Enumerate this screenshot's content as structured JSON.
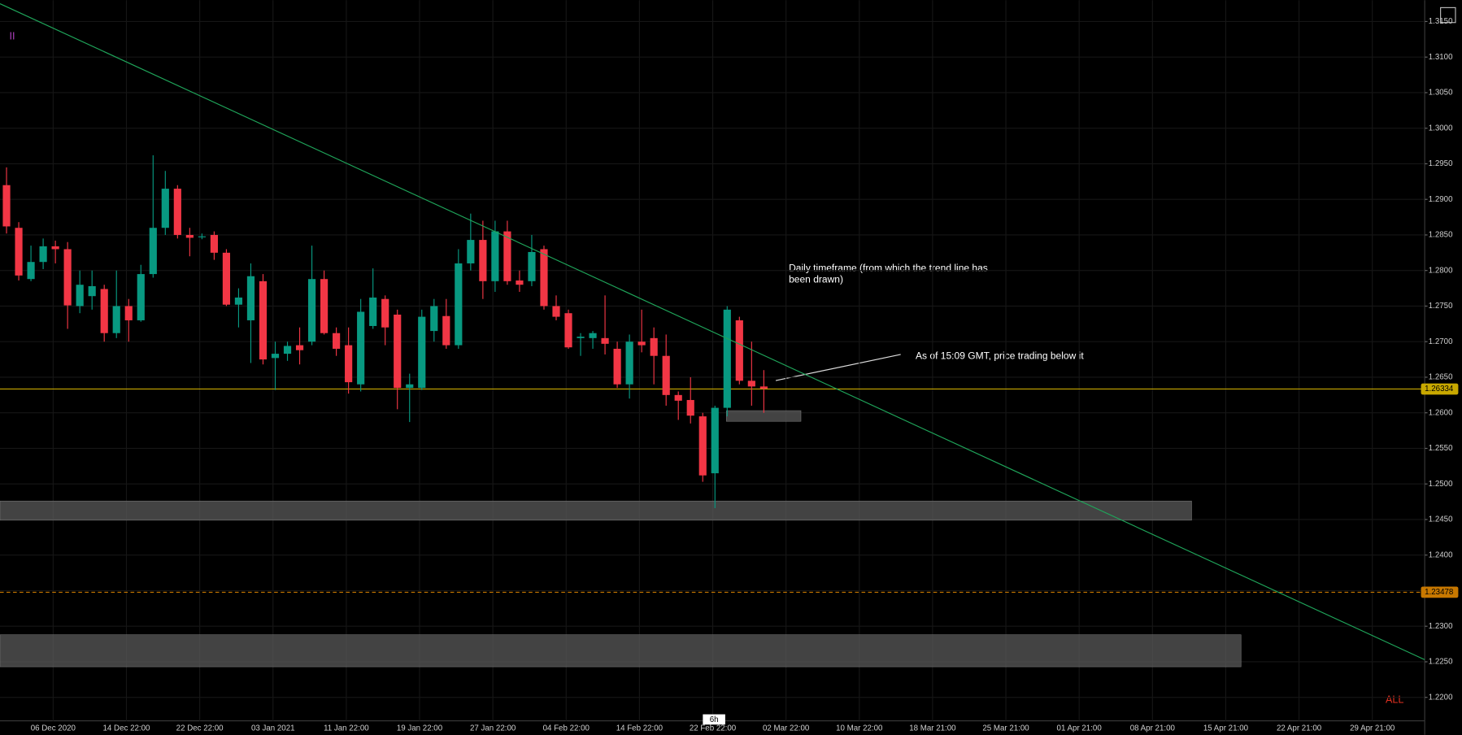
{
  "chart_data": {
    "type": "candlestick",
    "indicator": "II",
    "range_button": "ALL",
    "timeframe_label": "6h",
    "annotations": [
      "Daily timeframe (from which the trend line has",
      "been drawn)",
      "As of 15:09 GMT, price trading below it"
    ],
    "up_color": "#089981",
    "down_color": "#f23645",
    "ylim": [
      1.2167,
      1.318
    ],
    "yticks": [
      {
        "value": 1.22,
        "label": "1.2200"
      },
      {
        "value": 1.225,
        "label": "1.2250"
      },
      {
        "value": 1.23,
        "label": "1.2300"
      },
      {
        "value": 1.235,
        "label": "1.2350"
      },
      {
        "value": 1.24,
        "label": "1.2400"
      },
      {
        "value": 1.245,
        "label": "1.2450"
      },
      {
        "value": 1.25,
        "label": "1.2500"
      },
      {
        "value": 1.255,
        "label": "1.2550"
      },
      {
        "value": 1.26,
        "label": "1.2600"
      },
      {
        "value": 1.265,
        "label": "1.2650"
      },
      {
        "value": 1.27,
        "label": "1.2700"
      },
      {
        "value": 1.275,
        "label": "1.2750"
      },
      {
        "value": 1.28,
        "label": "1.2800"
      },
      {
        "value": 1.285,
        "label": "1.2850"
      },
      {
        "value": 1.29,
        "label": "1.2900"
      },
      {
        "value": 1.295,
        "label": "1.2950"
      },
      {
        "value": 1.3,
        "label": "1.3000"
      },
      {
        "value": 1.305,
        "label": "1.3050"
      },
      {
        "value": 1.31,
        "label": "1.3100"
      },
      {
        "value": 1.315,
        "label": "1.3150"
      }
    ],
    "xticks": [
      "06 Dec 2020",
      "14 Dec 22:00",
      "22 Dec 22:00",
      "03 Jan 2021",
      "11 Jan 22:00",
      "19 Jan 22:00",
      "27 Jan 22:00",
      "04 Feb 22:00",
      "14 Feb 22:00",
      "22 Feb 22:00",
      "02 Mar 22:00",
      "10 Mar 22:00",
      "18 Mar 21:00",
      "25 Mar 21:00",
      "01 Apr 21:00",
      "08 Apr 21:00",
      "15 Apr 21:00",
      "22 Apr 21:00",
      "29 Apr 21:00"
    ],
    "price_lines": [
      {
        "value": 1.26334,
        "color": "#c8a800",
        "style": "solid"
      },
      {
        "value": 1.23478,
        "color": "#c87800",
        "style": "dashed"
      }
    ],
    "zones": [
      {
        "top": 1.2603,
        "bottom": 1.2588
      },
      {
        "top": 1.2476,
        "bottom": 1.2449
      },
      {
        "top": 1.2288,
        "bottom": 1.2243
      }
    ],
    "trend_line": {
      "start": 1.3175,
      "end": 1.2253,
      "color": "#1fa55a"
    },
    "open": [
      1.292,
      1.286,
      1.2788,
      1.2812,
      1.2834,
      1.283,
      1.275,
      1.2764,
      1.2774,
      1.2712,
      1.275,
      1.273,
      1.2795,
      1.286,
      1.2915,
      1.285,
      1.2848,
      1.285,
      1.2825,
      1.2752,
      1.273,
      1.2785,
      1.2677,
      1.2683,
      1.2695,
      1.27,
      1.2788,
      1.2712,
      1.2695,
      1.264,
      1.2722,
      1.276,
      1.2738,
      1.2635,
      1.2635,
      1.2715,
      1.2736,
      1.2695,
      1.281,
      1.2843,
      1.2785,
      1.2855,
      1.2786,
      1.2785,
      1.283,
      1.275,
      1.274,
      1.2705,
      1.2705,
      1.2705,
      1.269,
      1.264,
      1.27,
      1.2705,
      1.268,
      1.2625,
      1.2618,
      1.2595,
      1.2515,
      1.2607,
      1.273,
      1.2645,
      1.2637
    ],
    "high": [
      1.2945,
      1.2868,
      1.2835,
      1.2845,
      1.2842,
      1.284,
      1.28,
      1.28,
      1.278,
      1.28,
      1.276,
      1.2808,
      1.2962,
      1.294,
      1.292,
      1.286,
      1.2852,
      1.2855,
      1.283,
      1.2775,
      1.281,
      1.2795,
      1.27,
      1.27,
      1.272,
      1.2835,
      1.28,
      1.272,
      1.272,
      1.276,
      1.2803,
      1.2765,
      1.2745,
      1.2655,
      1.2745,
      1.276,
      1.276,
      1.283,
      1.288,
      1.287,
      1.287,
      1.287,
      1.28,
      1.285,
      1.2835,
      1.2765,
      1.2745,
      1.2712,
      1.2715,
      1.2765,
      1.27,
      1.271,
      1.2745,
      1.272,
      1.271,
      1.263,
      1.265,
      1.26,
      1.261,
      1.275,
      1.2735,
      1.27,
      1.266
    ],
    "low": [
      1.2852,
      1.2786,
      1.2785,
      1.2802,
      1.281,
      1.2718,
      1.274,
      1.2745,
      1.27,
      1.2705,
      1.27,
      1.2728,
      1.279,
      1.285,
      1.2845,
      1.282,
      1.2844,
      1.2815,
      1.275,
      1.272,
      1.267,
      1.2668,
      1.2632,
      1.2673,
      1.2668,
      1.2695,
      1.271,
      1.268,
      1.2627,
      1.263,
      1.2718,
      1.2695,
      1.2605,
      1.2587,
      1.2632,
      1.27,
      1.269,
      1.269,
      1.28,
      1.276,
      1.277,
      1.278,
      1.277,
      1.2778,
      1.2745,
      1.273,
      1.269,
      1.268,
      1.269,
      1.2682,
      1.2635,
      1.262,
      1.2685,
      1.264,
      1.261,
      1.259,
      1.2585,
      1.2503,
      1.2466,
      1.2595,
      1.264,
      1.261,
      1.26
    ],
    "close": [
      1.2862,
      1.2793,
      1.2812,
      1.2834,
      1.283,
      1.2751,
      1.278,
      1.2778,
      1.2712,
      1.275,
      1.273,
      1.2795,
      1.286,
      1.2915,
      1.285,
      1.2846,
      1.2848,
      1.2825,
      1.2752,
      1.2762,
      1.2792,
      1.2675,
      1.2683,
      1.2694,
      1.2688,
      1.2788,
      1.2712,
      1.269,
      1.2643,
      1.2742,
      1.2762,
      1.272,
      1.2635,
      1.264,
      1.2735,
      1.275,
      1.2695,
      1.281,
      1.2843,
      1.2785,
      1.2855,
      1.2785,
      1.278,
      1.2826,
      1.275,
      1.2735,
      1.2692,
      1.2707,
      1.2712,
      1.2697,
      1.264,
      1.27,
      1.2695,
      1.268,
      1.2625,
      1.2617,
      1.2596,
      1.2512,
      1.2607,
      1.2745,
      1.2645,
      1.2637,
      1.2634
    ]
  }
}
